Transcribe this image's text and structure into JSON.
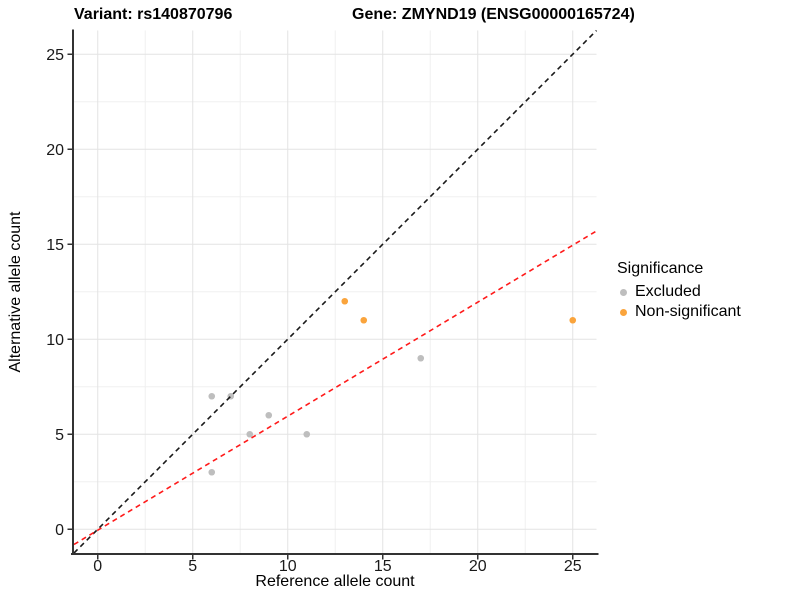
{
  "titles": {
    "variant": "Variant: rs140870796",
    "gene": "Gene: ZMYND19 (ENSG00000165724)"
  },
  "legend": {
    "title": "Significance",
    "items": [
      {
        "label": "Excluded",
        "color": "#BEBEBE"
      },
      {
        "label": "Non-significant",
        "color": "#FAA43C"
      }
    ]
  },
  "chart_data": {
    "type": "scatter",
    "title": "Variant: rs140870796 | Gene: ZMYND19 (ENSG00000165724)",
    "xlabel": "Reference allele count",
    "ylabel": "Alternative allele count",
    "xlim": [
      -1.25,
      26.25
    ],
    "ylim": [
      -1.25,
      26.25
    ],
    "xticks": [
      0,
      5,
      10,
      15,
      20,
      25
    ],
    "yticks": [
      0,
      5,
      10,
      15,
      20,
      25
    ],
    "minor_xticks": [
      2.5,
      7.5,
      12.5,
      17.5,
      22.5
    ],
    "minor_yticks": [
      2.5,
      7.5,
      12.5,
      17.5,
      22.5
    ],
    "grid": true,
    "legend_position": "right",
    "series": [
      {
        "name": "Excluded",
        "color": "#BEBEBE",
        "points": [
          [
            6,
            7
          ],
          [
            7,
            7
          ],
          [
            6,
            3
          ],
          [
            8,
            5
          ],
          [
            9,
            6
          ],
          [
            11,
            5
          ],
          [
            17,
            9
          ]
        ]
      },
      {
        "name": "Non-significant",
        "color": "#FAA43C",
        "points": [
          [
            13,
            12
          ],
          [
            14,
            11
          ],
          [
            25,
            11
          ]
        ]
      }
    ],
    "lines": [
      {
        "name": "identity-line",
        "slope": 1,
        "intercept": 0,
        "color": "#1A1A1A",
        "style": "dashed"
      },
      {
        "name": "fit-line",
        "slope": 0.6,
        "intercept": -0.05,
        "color": "#FF1A1A",
        "style": "dashed"
      }
    ],
    "colors": {
      "grid_major": "#E3E3E3",
      "grid_minor": "#F0F0F0",
      "axis": "#333333",
      "tick_label": "#1A1A1A",
      "background": "#FFFFFF"
    }
  }
}
